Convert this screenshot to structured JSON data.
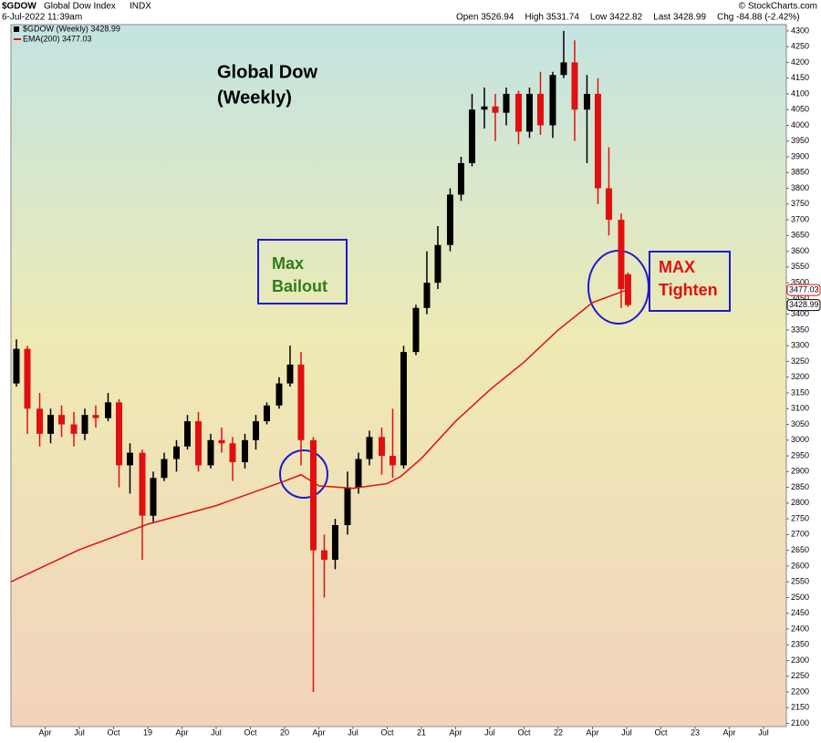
{
  "header": {
    "symbol": "$GDOW",
    "name": "Global Dow Index",
    "exchange": "INDX",
    "date": "6-Jul-2022 11:39am",
    "watermark": "© StockCharts.com",
    "quote": [
      "Open 3526.94",
      "High 3531.74",
      "Low 3422.82",
      "Last 3428.99",
      "Chg -84.88 (-2.42%)"
    ]
  },
  "chart_data": {
    "type": "candlestick",
    "annotations": [
      {
        "lines": [
          "Global Dow",
          "(Weekly)"
        ],
        "color": "#000000"
      },
      {
        "lines": [
          "Max",
          "Bailout"
        ],
        "color": "#2e7d1a"
      },
      {
        "lines": [
          "MAX",
          "Tighten"
        ],
        "color": "#e01010"
      }
    ],
    "xlim": [
      2018.0,
      2023.667
    ],
    "xticks": [
      {
        "value": 2018.25,
        "label": "Apr"
      },
      {
        "value": 2018.5,
        "label": "Jul"
      },
      {
        "value": 2018.75,
        "label": "Oct"
      },
      {
        "value": 2019,
        "label": "19"
      },
      {
        "value": 2019.25,
        "label": "Apr"
      },
      {
        "value": 2019.5,
        "label": "Jul"
      },
      {
        "value": 2019.75,
        "label": "Oct"
      },
      {
        "value": 2020,
        "label": "20"
      },
      {
        "value": 2020.25,
        "label": "Apr"
      },
      {
        "value": 2020.5,
        "label": "Jul"
      },
      {
        "value": 2020.75,
        "label": "Oct"
      },
      {
        "value": 2021,
        "label": "21"
      },
      {
        "value": 2021.25,
        "label": "Apr"
      },
      {
        "value": 2021.5,
        "label": "Jul"
      },
      {
        "value": 2021.75,
        "label": "Oct"
      },
      {
        "value": 2022,
        "label": "22"
      },
      {
        "value": 2022.25,
        "label": "Apr"
      },
      {
        "value": 2022.5,
        "label": "Jul"
      },
      {
        "value": 2022.75,
        "label": "Oct"
      },
      {
        "value": 2023,
        "label": "23"
      },
      {
        "value": 2023.25,
        "label": "Apr"
      },
      {
        "value": 2023.5,
        "label": "Jul"
      }
    ],
    "ylim": [
      2090,
      4320
    ],
    "yticks": [
      2100,
      2150,
      2200,
      2250,
      2300,
      2350,
      2400,
      2450,
      2500,
      2550,
      2600,
      2650,
      2700,
      2750,
      2800,
      2850,
      2900,
      2950,
      3000,
      3050,
      3100,
      3150,
      3200,
      3250,
      3300,
      3350,
      3400,
      3450,
      3500,
      3550,
      3600,
      3650,
      3700,
      3750,
      3800,
      3850,
      3900,
      3950,
      4000,
      4050,
      4100,
      4150,
      4200,
      4250,
      4300
    ],
    "price_tags": [
      {
        "value": 3477.03,
        "label": "3477.03",
        "color": "#e01010"
      },
      {
        "value": 3428.99,
        "label": "3428.99",
        "color": "#000000"
      }
    ],
    "series": [
      {
        "name": "$GDOW (Weekly) 3428.99",
        "up_color": "#000000",
        "down_color": "#e01010",
        "x": [
          2018.04,
          2018.12,
          2018.21,
          2018.29,
          2018.37,
          2018.46,
          2018.54,
          2018.62,
          2018.71,
          2018.79,
          2018.87,
          2018.96,
          2019.04,
          2019.12,
          2019.21,
          2019.29,
          2019.37,
          2019.46,
          2019.54,
          2019.62,
          2019.71,
          2019.79,
          2019.87,
          2019.96,
          2020.04,
          2020.12,
          2020.21,
          2020.29,
          2020.37,
          2020.46,
          2020.54,
          2020.62,
          2020.71,
          2020.79,
          2020.87,
          2020.96,
          2021.04,
          2021.12,
          2021.21,
          2021.29,
          2021.37,
          2021.46,
          2021.54,
          2021.62,
          2021.71,
          2021.79,
          2021.87,
          2021.96,
          2022.04,
          2022.12,
          2022.21,
          2022.29,
          2022.37,
          2022.46,
          2022.51
        ],
        "open": [
          3180,
          3290,
          3100,
          3020,
          3080,
          3050,
          3020,
          3080,
          3070,
          3120,
          2920,
          2960,
          2760,
          2880,
          2940,
          2980,
          3060,
          2920,
          3000,
          2990,
          2930,
          3000,
          3060,
          3110,
          3180,
          3240,
          3000,
          2650,
          2620,
          2730,
          2850,
          2940,
          3010,
          2950,
          2920,
          3280,
          3420,
          3500,
          3620,
          3780,
          3880,
          4050,
          4060,
          4040,
          4100,
          3980,
          4100,
          4000,
          4160,
          4200,
          4050,
          4100,
          3800,
          3700,
          3526.94
        ],
        "high": [
          3320,
          3300,
          3150,
          3100,
          3110,
          3090,
          3100,
          3110,
          3150,
          3130,
          2990,
          2970,
          2900,
          2960,
          3000,
          3080,
          3090,
          3020,
          3040,
          3010,
          3020,
          3080,
          3120,
          3200,
          3300,
          3280,
          3010,
          2700,
          2750,
          2900,
          2960,
          3030,
          3040,
          3100,
          3300,
          3430,
          3600,
          3680,
          3800,
          3900,
          4100,
          4120,
          4100,
          4120,
          4110,
          4120,
          4170,
          4170,
          4300,
          4270,
          4160,
          4150,
          3930,
          3720,
          3531.74
        ],
        "low": [
          3170,
          3020,
          2980,
          2990,
          3010,
          2980,
          3000,
          3040,
          3060,
          2850,
          2830,
          2620,
          2740,
          2870,
          2900,
          2970,
          2900,
          2910,
          2960,
          2870,
          2910,
          2970,
          3050,
          3100,
          3170,
          2920,
          2200,
          2500,
          2590,
          2700,
          2830,
          2920,
          2890,
          2880,
          2910,
          3270,
          3400,
          3480,
          3600,
          3760,
          3870,
          3990,
          3950,
          4000,
          3940,
          3960,
          3970,
          3960,
          4150,
          3950,
          3880,
          3750,
          3650,
          3420,
          3422.82
        ],
        "close": [
          3290,
          3100,
          3020,
          3080,
          3050,
          3020,
          3080,
          3070,
          3120,
          2920,
          2960,
          2760,
          2880,
          2940,
          2980,
          3060,
          2920,
          3000,
          2990,
          2930,
          3000,
          3060,
          3110,
          3180,
          3240,
          3000,
          2650,
          2620,
          2730,
          2850,
          2940,
          3010,
          2950,
          2920,
          3280,
          3420,
          3500,
          3620,
          3780,
          3880,
          4050,
          4060,
          4040,
          4100,
          3980,
          4100,
          4000,
          4160,
          4200,
          4050,
          4100,
          3800,
          3700,
          3480,
          3428.99
        ]
      },
      {
        "name": "EMA(200) 3477.03",
        "color": "#e01010",
        "x": [
          2018.0,
          2018.5,
          2019.0,
          2019.5,
          2020.0,
          2020.12,
          2020.25,
          2020.5,
          2020.75,
          2020.85,
          2021.0,
          2021.25,
          2021.5,
          2021.75,
          2022.0,
          2022.25,
          2022.5
        ],
        "values": [
          2550,
          2652,
          2733,
          2792,
          2870,
          2890,
          2855,
          2847,
          2862,
          2885,
          2942,
          3060,
          3160,
          3248,
          3350,
          3437,
          3477.03
        ]
      }
    ]
  }
}
